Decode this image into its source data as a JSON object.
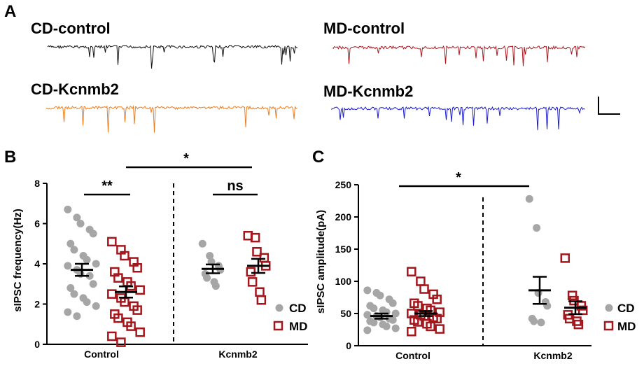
{
  "panels": {
    "a": "A",
    "b": "B",
    "c": "C"
  },
  "traces": [
    {
      "label": "CD-control",
      "color": "#111111"
    },
    {
      "label": "MD-control",
      "color": "#b0161d"
    },
    {
      "label": "CD-Kcnmb2",
      "color": "#f07c1c"
    },
    {
      "label": "MD-Kcnmb2",
      "color": "#1a1ad0"
    }
  ],
  "colors": {
    "cd": "#a6a6a6",
    "md": "#a3161c",
    "axis": "#000000"
  },
  "chart_data": [
    {
      "type": "scatter",
      "panel": "B",
      "ylabel": "sIPSC   frequency(Hz)",
      "ylim": [
        0,
        8
      ],
      "yticks": [
        "0",
        "2",
        "4",
        "6",
        "8"
      ],
      "groups": [
        "Control",
        "Kcnmb2"
      ],
      "legend": [
        {
          "name": "CD",
          "marker": "filled-circle"
        },
        {
          "name": "MD",
          "marker": "open-square"
        }
      ],
      "series": [
        {
          "name": "CD",
          "group": "Control",
          "mean": 3.7,
          "sem": 0.3,
          "values": [
            6.7,
            6.3,
            6.0,
            5.7,
            5.5,
            5.0,
            4.7,
            4.4,
            4.2,
            4.0,
            3.9,
            3.7,
            3.5,
            3.4,
            3.0,
            2.8,
            2.5,
            2.3,
            2.1,
            1.9,
            1.6,
            1.4
          ]
        },
        {
          "name": "MD",
          "group": "Control",
          "mean": 2.6,
          "sem": 0.28,
          "values": [
            5.1,
            4.7,
            4.4,
            4.1,
            3.8,
            3.6,
            3.3,
            3.1,
            2.9,
            2.7,
            2.5,
            2.3,
            2.1,
            1.9,
            1.7,
            1.5,
            1.3,
            1.1,
            0.9,
            0.6,
            0.4,
            0.1
          ]
        },
        {
          "name": "CD",
          "group": "Kcnmb2",
          "mean": 3.75,
          "sem": 0.22,
          "values": [
            5.0,
            4.4,
            4.1,
            3.9,
            3.7,
            3.5,
            3.3,
            3.1,
            2.9
          ]
        },
        {
          "name": "MD",
          "group": "Kcnmb2",
          "mean": 3.9,
          "sem": 0.35,
          "values": [
            5.4,
            5.3,
            4.6,
            4.3,
            3.9,
            3.6,
            3.1,
            2.6,
            2.2
          ]
        }
      ],
      "annotations": [
        {
          "text": "**",
          "between": "CD Control vs MD Control"
        },
        {
          "text": "ns",
          "between": "CD Kcnmb2 vs MD Kcnmb2"
        },
        {
          "text": "*",
          "between": "Control vs Kcnmb2"
        }
      ]
    },
    {
      "type": "scatter",
      "panel": "C",
      "ylabel": "sIPSC   amplitude(pA)",
      "ylim": [
        0,
        250
      ],
      "yticks": [
        "0",
        "50",
        "100",
        "150",
        "200",
        "250"
      ],
      "groups": [
        "Control",
        "Kcnmb2"
      ],
      "legend": [
        {
          "name": "CD",
          "marker": "filled-circle"
        },
        {
          "name": "MD",
          "marker": "open-square"
        }
      ],
      "series": [
        {
          "name": "CD",
          "group": "Control",
          "mean": 46,
          "sem": 4,
          "values": [
            86,
            82,
            78,
            72,
            66,
            62,
            58,
            55,
            52,
            50,
            48,
            46,
            44,
            42,
            40,
            38,
            36,
            33,
            30,
            27,
            24
          ]
        },
        {
          "name": "MD",
          "group": "Control",
          "mean": 50,
          "sem": 4,
          "values": [
            115,
            100,
            88,
            80,
            72,
            66,
            62,
            58,
            55,
            52,
            50,
            48,
            46,
            44,
            42,
            40,
            37,
            34,
            30,
            26,
            22
          ]
        },
        {
          "name": "CD",
          "group": "Kcnmb2",
          "mean": 86,
          "sem": 21,
          "values": [
            228,
            183,
            82,
            68,
            62,
            42,
            38,
            36
          ]
        },
        {
          "name": "MD",
          "group": "Kcnmb2",
          "mean": 59,
          "sem": 10,
          "values": [
            136,
            78,
            70,
            62,
            55,
            48,
            42,
            38,
            33
          ]
        }
      ],
      "annotations": [
        {
          "text": "*",
          "between": "Control vs Kcnmb2"
        }
      ]
    }
  ]
}
